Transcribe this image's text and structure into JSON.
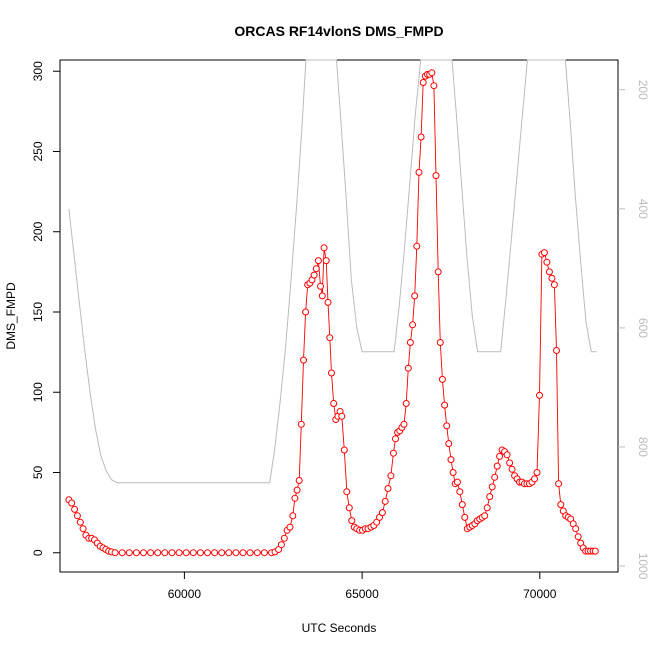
{
  "chart_data": {
    "type": "line",
    "title": "ORCAS RF14vlonS DMS_FMPD",
    "xlabel": "UTC Seconds",
    "ylabel": "DMS_FMPD",
    "xlim": [
      56500,
      72200
    ],
    "ylim": [
      -12,
      307
    ],
    "x_ticks": [
      60000,
      65000,
      70000
    ],
    "y_ticks": [
      0,
      50,
      100,
      150,
      200,
      250,
      300
    ],
    "y2_ticks": [
      200,
      400,
      600,
      800,
      1000
    ],
    "y2_lim": [
      1010,
      150
    ],
    "y2_reversed": true,
    "colors": {
      "primary": "#ff0000",
      "secondary": "#bbbbbb",
      "axis": "#000000",
      "axis_right": "#bbbbbb"
    },
    "series": [
      {
        "style": "points-and-line",
        "color": "#ff0000",
        "points": [
          [
            56750,
            33
          ],
          [
            56830,
            31
          ],
          [
            56910,
            27
          ],
          [
            56990,
            23
          ],
          [
            57070,
            19
          ],
          [
            57150,
            15
          ],
          [
            57230,
            11
          ],
          [
            57310,
            9
          ],
          [
            57390,
            9
          ],
          [
            57470,
            8
          ],
          [
            57550,
            6
          ],
          [
            57630,
            4
          ],
          [
            57710,
            3
          ],
          [
            57790,
            2
          ],
          [
            57870,
            1
          ],
          [
            57950,
            0.5
          ],
          [
            58050,
            0
          ],
          [
            58250,
            0
          ],
          [
            58450,
            0
          ],
          [
            58650,
            0
          ],
          [
            58850,
            0
          ],
          [
            59050,
            0
          ],
          [
            59250,
            0
          ],
          [
            59450,
            0
          ],
          [
            59650,
            0
          ],
          [
            59850,
            0
          ],
          [
            60050,
            0
          ],
          [
            60250,
            0
          ],
          [
            60450,
            0
          ],
          [
            60650,
            0
          ],
          [
            60850,
            0
          ],
          [
            61050,
            0
          ],
          [
            61250,
            0
          ],
          [
            61450,
            0
          ],
          [
            61650,
            0
          ],
          [
            61850,
            0
          ],
          [
            62050,
            0
          ],
          [
            62250,
            0
          ],
          [
            62450,
            0
          ],
          [
            62550,
            0.5
          ],
          [
            62650,
            2
          ],
          [
            62730,
            5
          ],
          [
            62810,
            9
          ],
          [
            62890,
            14
          ],
          [
            62970,
            16
          ],
          [
            63050,
            23
          ],
          [
            63110,
            34
          ],
          [
            63170,
            39
          ],
          [
            63230,
            45
          ],
          [
            63290,
            80
          ],
          [
            63350,
            120
          ],
          [
            63410,
            150
          ],
          [
            63470,
            167
          ],
          [
            63530,
            168
          ],
          [
            63590,
            170
          ],
          [
            63650,
            173
          ],
          [
            63710,
            177
          ],
          [
            63770,
            182
          ],
          [
            63830,
            166
          ],
          [
            63880,
            160
          ],
          [
            63930,
            190
          ],
          [
            63990,
            182
          ],
          [
            64040,
            156
          ],
          [
            64090,
            134
          ],
          [
            64140,
            112
          ],
          [
            64200,
            93
          ],
          [
            64260,
            83
          ],
          [
            64320,
            85
          ],
          [
            64380,
            88
          ],
          [
            64430,
            85
          ],
          [
            64500,
            64
          ],
          [
            64570,
            38
          ],
          [
            64640,
            28
          ],
          [
            64710,
            20
          ],
          [
            64780,
            16
          ],
          [
            64850,
            15
          ],
          [
            64930,
            14
          ],
          [
            65010,
            14
          ],
          [
            65090,
            15
          ],
          [
            65170,
            15
          ],
          [
            65250,
            16
          ],
          [
            65330,
            17
          ],
          [
            65410,
            19
          ],
          [
            65490,
            22
          ],
          [
            65570,
            25
          ],
          [
            65650,
            32
          ],
          [
            65730,
            40
          ],
          [
            65810,
            48
          ],
          [
            65880,
            62
          ],
          [
            65940,
            71
          ],
          [
            66000,
            75
          ],
          [
            66060,
            76
          ],
          [
            66120,
            78
          ],
          [
            66180,
            80
          ],
          [
            66240,
            93
          ],
          [
            66300,
            115
          ],
          [
            66360,
            131
          ],
          [
            66420,
            142
          ],
          [
            66480,
            160
          ],
          [
            66540,
            191
          ],
          [
            66600,
            237
          ],
          [
            66660,
            259
          ],
          [
            66720,
            293
          ],
          [
            66780,
            297
          ],
          [
            66840,
            298
          ],
          [
            66900,
            298
          ],
          [
            66960,
            299
          ],
          [
            67020,
            291
          ],
          [
            67080,
            235
          ],
          [
            67140,
            175
          ],
          [
            67200,
            131
          ],
          [
            67260,
            108
          ],
          [
            67320,
            92
          ],
          [
            67380,
            79
          ],
          [
            67440,
            68
          ],
          [
            67500,
            58
          ],
          [
            67560,
            50
          ],
          [
            67620,
            43
          ],
          [
            67680,
            44
          ],
          [
            67750,
            38
          ],
          [
            67820,
            30
          ],
          [
            67890,
            22
          ],
          [
            67960,
            15
          ],
          [
            68030,
            16
          ],
          [
            68100,
            17
          ],
          [
            68170,
            18
          ],
          [
            68240,
            20
          ],
          [
            68310,
            21
          ],
          [
            68380,
            22
          ],
          [
            68450,
            23
          ],
          [
            68520,
            28
          ],
          [
            68590,
            35
          ],
          [
            68660,
            41
          ],
          [
            68730,
            47
          ],
          [
            68800,
            54
          ],
          [
            68870,
            60
          ],
          [
            68940,
            64
          ],
          [
            69010,
            63
          ],
          [
            69080,
            61
          ],
          [
            69150,
            56
          ],
          [
            69220,
            52
          ],
          [
            69290,
            48
          ],
          [
            69360,
            46
          ],
          [
            69430,
            44
          ],
          [
            69500,
            44
          ],
          [
            69570,
            43
          ],
          [
            69640,
            43
          ],
          [
            69710,
            43
          ],
          [
            69780,
            44
          ],
          [
            69850,
            46
          ],
          [
            69920,
            50
          ],
          [
            69990,
            98
          ],
          [
            70060,
            186
          ],
          [
            70130,
            187
          ],
          [
            70200,
            181
          ],
          [
            70270,
            175
          ],
          [
            70340,
            171
          ],
          [
            70410,
            167
          ],
          [
            70470,
            126
          ],
          [
            70530,
            43
          ],
          [
            70590,
            30
          ],
          [
            70660,
            26
          ],
          [
            70730,
            23
          ],
          [
            70800,
            22
          ],
          [
            70870,
            21
          ],
          [
            70940,
            18
          ],
          [
            71010,
            15
          ],
          [
            71080,
            10
          ],
          [
            71150,
            6
          ],
          [
            71220,
            3
          ],
          [
            71290,
            1
          ],
          [
            71360,
            1
          ],
          [
            71430,
            1
          ],
          [
            71500,
            1
          ],
          [
            71560,
            1
          ]
        ]
      },
      {
        "style": "line",
        "color": "#bbbbbb",
        "axis": "right",
        "points": [
          [
            56750,
            400
          ],
          [
            56900,
            480
          ],
          [
            57050,
            560
          ],
          [
            57200,
            640
          ],
          [
            57350,
            710
          ],
          [
            57500,
            770
          ],
          [
            57650,
            815
          ],
          [
            57800,
            840
          ],
          [
            57950,
            855
          ],
          [
            58100,
            860
          ],
          [
            59000,
            860
          ],
          [
            60000,
            860
          ],
          [
            61000,
            860
          ],
          [
            62000,
            860
          ],
          [
            62400,
            860
          ],
          [
            62550,
            800
          ],
          [
            62700,
            720
          ],
          [
            62850,
            630
          ],
          [
            63000,
            520
          ],
          [
            63150,
            400
          ],
          [
            63300,
            270
          ],
          [
            63420,
            150
          ],
          [
            64280,
            150
          ],
          [
            64400,
            250
          ],
          [
            64550,
            380
          ],
          [
            64700,
            520
          ],
          [
            64850,
            600
          ],
          [
            65000,
            640
          ],
          [
            65500,
            640
          ],
          [
            65900,
            640
          ],
          [
            66050,
            560
          ],
          [
            66200,
            460
          ],
          [
            66350,
            350
          ],
          [
            66500,
            240
          ],
          [
            66650,
            150
          ],
          [
            67530,
            150
          ],
          [
            67650,
            240
          ],
          [
            67800,
            360
          ],
          [
            67950,
            480
          ],
          [
            68100,
            580
          ],
          [
            68250,
            640
          ],
          [
            68900,
            640
          ],
          [
            69050,
            550
          ],
          [
            69200,
            450
          ],
          [
            69350,
            350
          ],
          [
            69500,
            250
          ],
          [
            69650,
            150
          ],
          [
            70720,
            150
          ],
          [
            70850,
            250
          ],
          [
            71000,
            380
          ],
          [
            71150,
            490
          ],
          [
            71300,
            590
          ],
          [
            71450,
            640
          ],
          [
            71600,
            640
          ]
        ]
      }
    ]
  }
}
